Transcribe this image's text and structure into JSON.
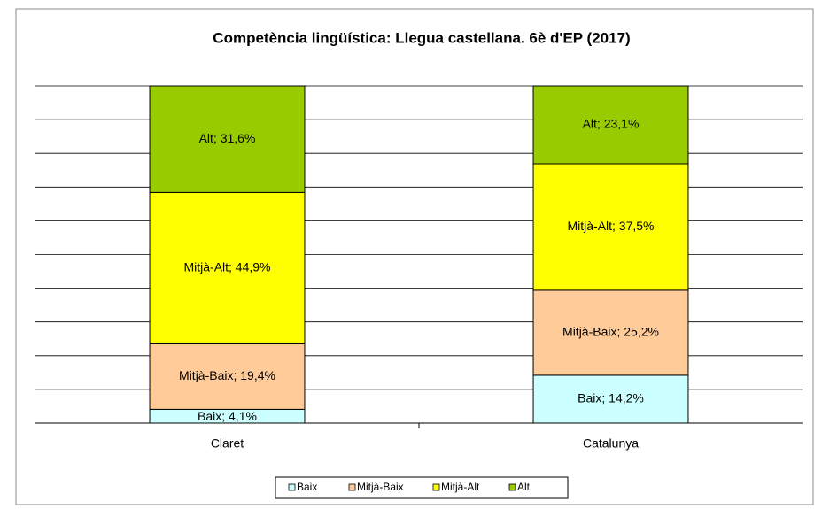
{
  "chart_data": {
    "type": "stacked_bar",
    "title": "Competència  lingüística: Llegua castellana. 6è d'EP (2017)",
    "categories": [
      "Claret",
      "Catalunya"
    ],
    "series": [
      {
        "name": "Baix",
        "color": "#ccffff",
        "values": [
          4.1,
          14.2
        ],
        "value_labels": [
          "Baix; 4,1%",
          "Baix; 14,2%"
        ]
      },
      {
        "name": "Mitjà-Baix",
        "color": "#ffcc99",
        "values": [
          19.4,
          25.2
        ],
        "value_labels": [
          "Mitjà-Baix; 19,4%",
          "Mitjà-Baix; 25,2%"
        ]
      },
      {
        "name": "Mitjà-Alt",
        "color": "#ffff00",
        "values": [
          44.9,
          37.5
        ],
        "value_labels": [
          "Mitjà-Alt; 44,9%",
          "Mitjà-Alt; 37,5%"
        ]
      },
      {
        "name": "Alt",
        "color": "#99cc00",
        "values": [
          31.6,
          23.1
        ],
        "value_labels": [
          "Alt; 31,6%",
          "Alt; 23,1%"
        ]
      }
    ],
    "ylim": [
      0,
      100
    ],
    "yticks": [
      0,
      10,
      20,
      30,
      40,
      50,
      60,
      70,
      80,
      90,
      100
    ],
    "grid": true
  }
}
